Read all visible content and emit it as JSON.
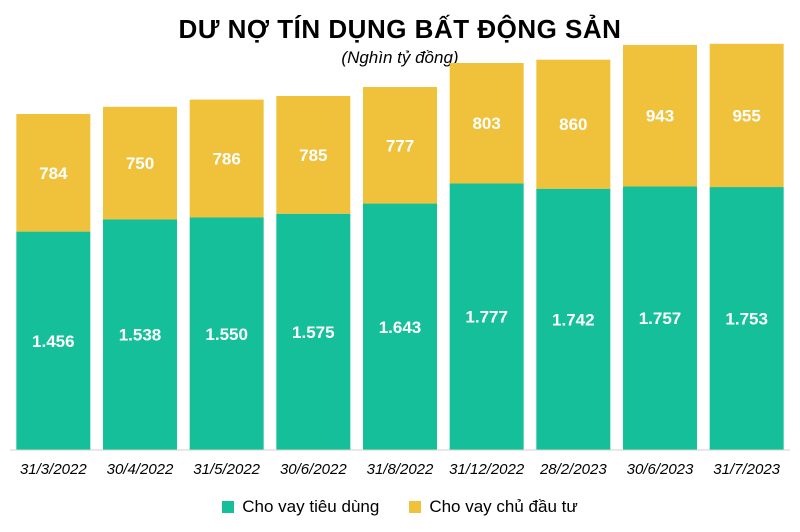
{
  "title": "DƯ NỢ TÍN DỤNG BẤT ĐỘNG SẢN",
  "subtitle": "(Nghìn tỷ đồng)",
  "colors": {
    "consumer": "#15BF99",
    "developer": "#F0C13A"
  },
  "chart_data": {
    "type": "bar",
    "stacked": true,
    "categories": [
      "31/3/2022",
      "30/4/2022",
      "31/5/2022",
      "30/6/2022",
      "31/8/2022",
      "31/12/2022",
      "28/2/2023",
      "30/6/2023",
      "31/7/2023"
    ],
    "series": [
      {
        "name": "Cho vay tiêu dùng",
        "values": [
          1456,
          1538,
          1550,
          1575,
          1643,
          1777,
          1742,
          1757,
          1753
        ],
        "labels": [
          "1.456",
          "1.538",
          "1.550",
          "1.575",
          "1.643",
          "1.777",
          "1.742",
          "1.757",
          "1.753"
        ]
      },
      {
        "name": "Cho vay chủ đầu tư",
        "values": [
          784,
          750,
          786,
          785,
          777,
          803,
          860,
          943,
          955
        ],
        "labels": [
          "784",
          "750",
          "786",
          "785",
          "777",
          "803",
          "860",
          "943",
          "955"
        ]
      }
    ],
    "ylim": [
      0,
      2800
    ],
    "grid": false,
    "legend_position": "bottom"
  }
}
